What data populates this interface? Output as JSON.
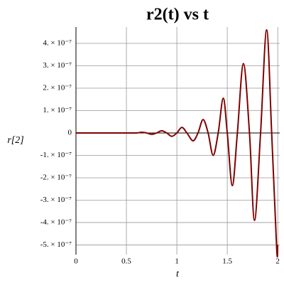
{
  "chart_data": {
    "type": "line",
    "title": "r2(t) vs t",
    "x_label": "t",
    "y_label": "r[2]",
    "x": [
      0,
      0.5,
      0.6,
      0.65,
      0.7,
      0.75,
      0.8,
      0.85,
      0.9,
      0.95,
      1.0,
      1.05,
      1.1,
      1.16,
      1.21,
      1.26,
      1.31,
      1.36,
      1.41,
      1.46,
      1.5,
      1.55,
      1.6,
      1.66,
      1.72,
      1.77,
      1.83,
      1.89,
      1.94,
      1.99,
      2.0
    ],
    "series": [
      {
        "name": "r[2]",
        "color": "#800000",
        "values": [
          0,
          0,
          0,
          3e-09,
          0,
          -6e-09,
          0,
          1e-08,
          0,
          -1.5e-08,
          0,
          2.5e-08,
          0,
          -3.5e-08,
          0,
          6e-08,
          0,
          -1e-07,
          0,
          1.55e-07,
          0,
          -2.35e-07,
          0,
          3.1e-07,
          0,
          -3.9e-07,
          0,
          4.6e-07,
          0,
          -5.2e-07,
          -5e-07
        ]
      }
    ],
    "xlim": [
      0,
      2.02
    ],
    "ylim": [
      -5.43e-07,
      4.73e-07
    ],
    "xticks": [
      0,
      0.5,
      1,
      1.5,
      2
    ],
    "yticks": [
      {
        "value": -5e-07,
        "label": "-5. × 10⁻⁷"
      },
      {
        "value": -4e-07,
        "label": "-4. × 10⁻⁷"
      },
      {
        "value": -3e-07,
        "label": "-3. × 10⁻⁷"
      },
      {
        "value": -2e-07,
        "label": "-2. × 10⁻⁷"
      },
      {
        "value": -1e-07,
        "label": "-1. × 10⁻⁷"
      },
      0,
      {
        "value": 1e-07,
        "label": "1. × 10⁻⁷"
      },
      {
        "value": 2e-07,
        "label": "2. × 10⁻⁷"
      },
      {
        "value": 3e-07,
        "label": "3. × 10⁻⁷"
      },
      {
        "value": 4e-07,
        "label": "4. × 10⁻⁷"
      }
    ],
    "grid": true
  }
}
